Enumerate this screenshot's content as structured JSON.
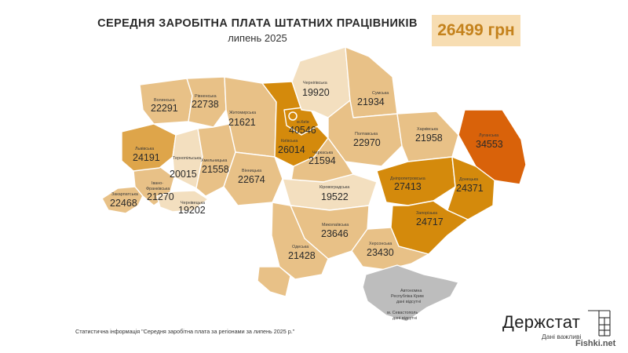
{
  "header": {
    "title": "СЕРЕДНЯ ЗАРОБІТНА ПЛАТА ШТАТНИХ ПРАЦІВНИКІВ",
    "subtitle": "липень 2025",
    "average_value": "26499 грн"
  },
  "legend_colors": {
    "lowest": "#f3dfbf",
    "low": "#e8c187",
    "mid": "#dea54a",
    "high": "#d48a0c",
    "highest": "#d9620a",
    "no_data": "#bdbdbd"
  },
  "regions": [
    {
      "name": "Волинська",
      "value": "22291",
      "tier": "low"
    },
    {
      "name": "Рівненська",
      "value": "22738",
      "tier": "low"
    },
    {
      "name": "Житомирська",
      "value": "21621",
      "tier": "low"
    },
    {
      "name": "Чернігівська",
      "value": "19920",
      "tier": "lowest"
    },
    {
      "name": "Сумська",
      "value": "21934",
      "tier": "low"
    },
    {
      "name": "м.Київ",
      "value": "40546",
      "tier": "high"
    },
    {
      "name": "Київська",
      "value": "26014",
      "tier": "high"
    },
    {
      "name": "Полтавська",
      "value": "22970",
      "tier": "low"
    },
    {
      "name": "Харківська",
      "value": "21958",
      "tier": "low"
    },
    {
      "name": "Луганська",
      "value": "34553",
      "tier": "highest"
    },
    {
      "name": "Львівська",
      "value": "24191",
      "tier": "mid"
    },
    {
      "name": "Тернопільська",
      "value": "20015",
      "tier": "lowest"
    },
    {
      "name": "Хмельницька",
      "value": "21558",
      "tier": "low"
    },
    {
      "name": "Вінницька",
      "value": "22674",
      "tier": "low"
    },
    {
      "name": "Черкаська",
      "value": "21594",
      "tier": "low"
    },
    {
      "name": "Кіровоградська",
      "value": "19522",
      "tier": "lowest"
    },
    {
      "name": "Дніпропетровська",
      "value": "27413",
      "tier": "high"
    },
    {
      "name": "Донецька",
      "value": "24371",
      "tier": "high"
    },
    {
      "name": "Закарпатська",
      "value": "22468",
      "tier": "low"
    },
    {
      "name": "Івано-Франківська",
      "value": "21270",
      "tier": "low"
    },
    {
      "name": "Чернівецька",
      "value": "19202",
      "tier": "lowest"
    },
    {
      "name": "Миколаївська",
      "value": "23646",
      "tier": "low"
    },
    {
      "name": "Одеська",
      "value": "21428",
      "tier": "low"
    },
    {
      "name": "Херсонська",
      "value": "23430",
      "tier": "low"
    },
    {
      "name": "Запорізька",
      "value": "24717",
      "tier": "high"
    }
  ],
  "no_data_labels": {
    "crimea_line1": "Автономна",
    "crimea_line2": "Республіка Крим",
    "crimea_line3": "дані відсутні",
    "sevastopol_line1": "м. Севастополь",
    "sevastopol_line2": "дані відсутні"
  },
  "footer": {
    "source_note": "Статистична інформація \"Середня заробітна плата за регіонами за липень 2025 р.\"",
    "brand_name": "Держстат",
    "brand_tagline": "Дані важливі",
    "watermark": "Fishki.net"
  }
}
